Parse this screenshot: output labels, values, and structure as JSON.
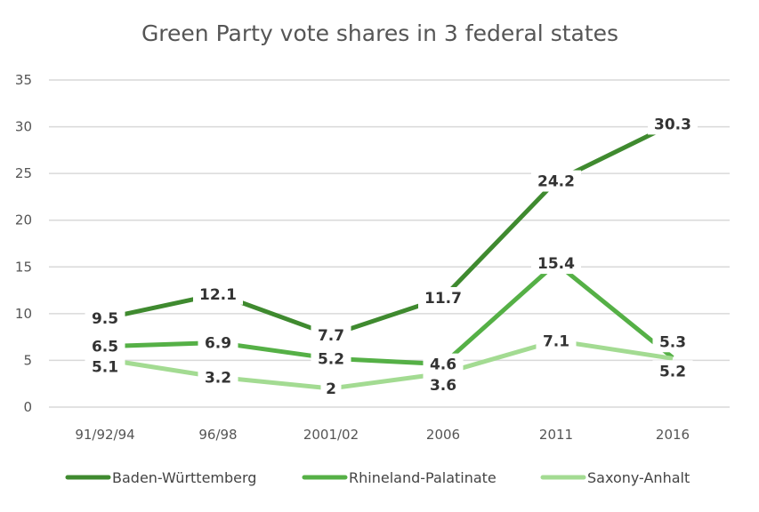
{
  "chart_data": {
    "type": "line",
    "title": "Green Party vote shares in 3 federal states",
    "categories": [
      "91/92/94",
      "96/98",
      "2001/02",
      "2006",
      "2011",
      "2016"
    ],
    "ylim": [
      0,
      35
    ],
    "yticks": [
      0,
      5,
      10,
      15,
      20,
      25,
      30,
      35
    ],
    "grid": true,
    "legend": "bottom",
    "series": [
      {
        "name": "Baden-Württemberg",
        "color": "#3f8a2f",
        "values": [
          9.5,
          12.1,
          7.7,
          11.7,
          24.2,
          30.3
        ]
      },
      {
        "name": "Rhineland-Palatinate",
        "color": "#55b046",
        "values": [
          6.5,
          6.9,
          5.2,
          4.6,
          15.4,
          5.3
        ]
      },
      {
        "name": "Saxony-Anhalt",
        "color": "#a3db92",
        "values": [
          5.1,
          3.2,
          2,
          3.6,
          7.1,
          5.2
        ]
      }
    ]
  }
}
